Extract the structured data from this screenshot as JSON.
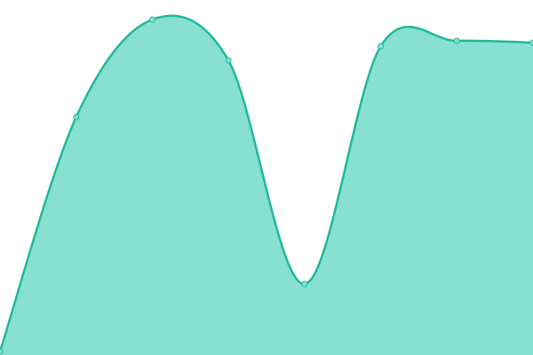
{
  "chart_data": {
    "type": "area",
    "x": [
      0,
      1,
      2,
      3,
      4,
      5,
      6,
      7
    ],
    "values": [
      1,
      67,
      94.5,
      83,
      20,
      87,
      88.5,
      88
    ],
    "xlim": [
      0,
      7
    ],
    "ylim": [
      0,
      100
    ],
    "color": "#1fb89a",
    "fill_color": "#88e0d0"
  }
}
